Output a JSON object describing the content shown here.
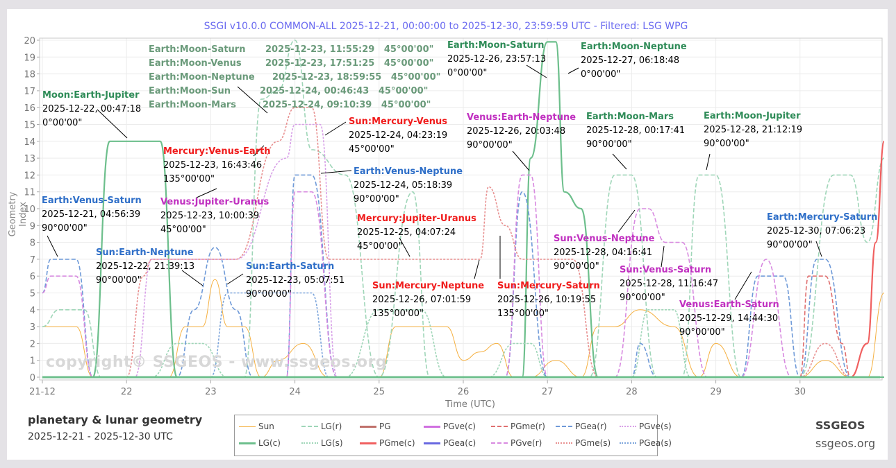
{
  "header": {
    "title": "SSGI v10.0.0 COMMON-ALL 2025-12-21, 00:00:00 to 2025-12-30, 23:59:59 UTC - Filtered: LSG WPG"
  },
  "footer": {
    "left_title": "planetary & lunar geometry",
    "left_subtitle": "2025-12-21 - 2025-12-30 UTC",
    "right_title": "SSGEOS",
    "right_subtitle": "ssgeos.org"
  },
  "watermark": "copyright© SSGEOS - www.ssgeos.org",
  "axes": {
    "xlabel": "Time (UTC)",
    "ylabel": "Geometry Index",
    "xticks": [
      "21-12",
      "22",
      "23",
      "24",
      "25",
      "26",
      "27",
      "28",
      "29",
      "30"
    ],
    "yticks": [
      "0",
      "1",
      "2",
      "3",
      "4",
      "5",
      "6",
      "7",
      "8",
      "9",
      "10",
      "11",
      "12",
      "13",
      "14",
      "15",
      "16",
      "17",
      "18",
      "19",
      "20"
    ]
  },
  "legend": [
    {
      "label": "Sun",
      "color": "#f5b041",
      "style": "solid-thin"
    },
    {
      "label": "LG(r)",
      "color": "#9fd6b8",
      "style": "dashed"
    },
    {
      "label": "PG",
      "color": "#c0716b",
      "style": "solid"
    },
    {
      "label": "PGve(c)",
      "color": "#d070e0",
      "style": "solid"
    },
    {
      "label": "PGme(r)",
      "color": "#e07070",
      "style": "dashed"
    },
    {
      "label": "PGea(r)",
      "color": "#6f9ad8",
      "style": "dashed"
    },
    {
      "label": "PGve(s)",
      "color": "#d8a0e8",
      "style": "dotted"
    },
    {
      "label": "LG(c)",
      "color": "#6dbf8c",
      "style": "solid"
    },
    {
      "label": "LG(s)",
      "color": "#9fd6b8",
      "style": "dotted"
    },
    {
      "label": "PGme(c)",
      "color": "#f06060",
      "style": "solid"
    },
    {
      "label": "PGea(c)",
      "color": "#6868e0",
      "style": "solid"
    },
    {
      "label": "PGve(r)",
      "color": "#d88ae0",
      "style": "dashed"
    },
    {
      "label": "PGme(s)",
      "color": "#e89090",
      "style": "dotted"
    },
    {
      "label": "PGea(s)",
      "color": "#7ea6dc",
      "style": "dotted"
    }
  ],
  "annotations": {
    "earth_moon_group": [
      {
        "name": "Earth:Moon-Saturn",
        "time": "2025-12-23, 11:55:29",
        "angle": "45°00'00\""
      },
      {
        "name": "Earth:Moon-Venus",
        "time": "2025-12-23, 17:51:25",
        "angle": "45°00'00\""
      },
      {
        "name": "Earth:Moon-Neptune",
        "time": "2025-12-23, 18:59:55",
        "angle": "45°00'00\""
      },
      {
        "name": "Earth:Moon-Sun",
        "time": "2025-12-24, 00:46:43",
        "angle": "45°00'00\""
      },
      {
        "name": "Earth:Moon-Mars",
        "time": "2025-12-24, 09:10:39",
        "angle": "45°00'00\""
      }
    ],
    "a1": {
      "name": "Moon:Earth-Jupiter",
      "time": "2025-12-22, 00:47:18",
      "angle": "0°00'00\""
    },
    "a2": {
      "name": "Earth:Venus-Saturn",
      "time": "2025-12-21, 04:56:39",
      "angle": "90°00'00\""
    },
    "a3": {
      "name": "Mercury:Venus-Earth",
      "time": "2025-12-23, 16:43:46",
      "angle": "135°00'00\""
    },
    "a4": {
      "name": "Venus:Jupiter-Uranus",
      "time": "2025-12-23, 10:00:39",
      "angle": "45°00'00\""
    },
    "a5": {
      "name": "Sun:Earth-Neptune",
      "time": "2025-12-22, 21:39:13",
      "angle": "90°00'00\""
    },
    "a6": {
      "name": "Sun:Earth-Saturn",
      "time": "2025-12-23, 05:07:51",
      "angle": "90°00'00\""
    },
    "a7": {
      "name": "Sun:Mercury-Venus",
      "time": "2025-12-24, 04:23:19",
      "angle": "45°00'00\""
    },
    "a8": {
      "name": "Earth:Venus-Neptune",
      "time": "2025-12-24, 05:18:39",
      "angle": "90°00'00\""
    },
    "a9": {
      "name": "Mercury:Jupiter-Uranus",
      "time": "2025-12-25, 04:07:24",
      "angle": "45°00'00\""
    },
    "a10": {
      "name": "Sun:Mercury-Neptune",
      "time": "2025-12-26, 07:01:59",
      "angle": "135°00'00\""
    },
    "a11": {
      "name": "Sun:Mercury-Saturn",
      "time": "2025-12-26, 10:19:55",
      "angle": "135°00'00\""
    },
    "a12": {
      "name": "Earth:Moon-Saturn",
      "time": "2025-12-26, 23:57:13",
      "angle": "0°00'00\""
    },
    "a13": {
      "name": "Earth:Moon-Neptune",
      "time": "2025-12-27, 06:18:48",
      "angle": "0°00'00\""
    },
    "a14": {
      "name": "Venus:Earth-Neptune",
      "time": "2025-12-26, 20:03:48",
      "angle": "90°00'00\""
    },
    "a15": {
      "name": "Earth:Moon-Mars",
      "time": "2025-12-28, 00:17:41",
      "angle": "90°00'00\""
    },
    "a16": {
      "name": "Earth:Moon-Jupiter",
      "time": "2025-12-28, 21:12:19",
      "angle": "90°00'00\""
    },
    "a17": {
      "name": "Sun:Venus-Neptune",
      "time": "2025-12-28, 04:16:41",
      "angle": "90°00'00\""
    },
    "a18": {
      "name": "Sun:Venus-Saturn",
      "time": "2025-12-28, 11:16:47",
      "angle": "90°00'00\""
    },
    "a19": {
      "name": "Venus:Earth-Saturn",
      "time": "2025-12-29, 14:44:30",
      "angle": "90°00'00\""
    },
    "a20": {
      "name": "Earth:Mercury-Saturn",
      "time": "2025-12-30, 07:06:23",
      "angle": "90°00'00\""
    }
  },
  "chart_data": {
    "type": "line",
    "title": "SSGI v10.0.0 COMMON-ALL 2025-12-21, 00:00:00 to 2025-12-30, 23:59:59 UTC - Filtered: LSG WPG",
    "xlabel": "Time (UTC)",
    "ylabel": "Geometry Index",
    "xlim": [
      21,
      31
    ],
    "ylim": [
      0,
      20
    ],
    "grid": true,
    "legend_position": "bottom",
    "x_unit": "day of Dec 2025",
    "series": [
      {
        "name": "Sun",
        "x": [
          21.0,
          21.4,
          21.6,
          22.0,
          22.5,
          22.7,
          22.9,
          23.05,
          23.2,
          23.4,
          23.6,
          23.8,
          24.1,
          24.4,
          24.6,
          25.0,
          25.2,
          25.5,
          25.8,
          26.0,
          26.2,
          26.4,
          26.6,
          26.8,
          27.1,
          27.4,
          27.6,
          27.8,
          28.1,
          28.5,
          28.8,
          29.0,
          29.3,
          29.5,
          30.0,
          30.3,
          30.6,
          30.8,
          31.0
        ],
        "values": [
          3,
          3,
          0,
          0,
          0,
          3,
          3,
          5.8,
          3,
          3,
          0,
          1,
          2,
          0,
          0,
          0,
          3,
          3,
          3,
          1,
          1.5,
          2,
          0,
          0,
          1,
          0,
          3,
          3,
          4,
          3,
          0,
          2,
          0,
          0,
          0,
          1,
          0,
          0,
          5
        ]
      },
      {
        "name": "LG(c)",
        "x": [
          21.0,
          21.6,
          21.8,
          22.0,
          22.2,
          22.4,
          22.6,
          23.0,
          26.5,
          26.7,
          26.8,
          27.0,
          27.1,
          27.2,
          27.4,
          27.6,
          31.0
        ],
        "values": [
          0,
          0,
          14,
          14,
          14,
          14,
          0,
          0,
          0,
          0,
          13,
          19.9,
          19.9,
          11,
          10,
          0,
          0
        ]
      },
      {
        "name": "LG(r)",
        "x": [
          21.0,
          21.2,
          21.5,
          21.7,
          23.4,
          23.6,
          23.8,
          24.0,
          24.2,
          24.6,
          25.0,
          25.4,
          25.6,
          26.0,
          27.5,
          27.8,
          28.0,
          28.3,
          28.6,
          28.8,
          29.0,
          29.3,
          29.6,
          30.0,
          30.4,
          30.6,
          30.8,
          31.0
        ],
        "values": [
          3,
          4,
          4,
          0,
          0,
          16.5,
          17,
          20,
          13.5,
          12,
          0,
          11,
          0,
          0,
          0,
          12,
          12,
          0,
          0,
          12,
          12,
          0,
          0,
          0,
          12,
          12,
          8,
          13
        ]
      },
      {
        "name": "LG(s)",
        "x": [
          22.3,
          22.6,
          22.9,
          23.2,
          24.6,
          25.0,
          25.5,
          25.8,
          26.3,
          26.6,
          26.8,
          27.0,
          28.0,
          28.2,
          28.5,
          28.7
        ],
        "values": [
          0,
          2,
          2,
          0,
          0,
          4,
          4,
          0,
          0,
          2,
          2,
          0,
          0,
          4,
          4,
          0
        ]
      },
      {
        "name": "PGea(r)",
        "x": [
          21.0,
          21.1,
          21.4,
          21.6,
          22.6,
          22.8,
          23.05,
          23.3,
          23.5,
          23.9,
          24.0,
          24.2,
          24.5,
          24.8,
          26.5,
          26.7,
          27.0,
          28.0,
          28.1,
          28.3,
          29.3,
          29.5,
          29.8,
          30.0,
          30.2,
          30.3,
          30.6
        ],
        "values": [
          5,
          7,
          7,
          0,
          0,
          4,
          7.7,
          4,
          0,
          0,
          12,
          12,
          0,
          0,
          0,
          11,
          0,
          0,
          2,
          0,
          0,
          6,
          6,
          0,
          7,
          7,
          0
        ]
      },
      {
        "name": "PGea(s)",
        "x": [
          23.0,
          23.2,
          23.6,
          24.0,
          24.2,
          24.4
        ],
        "values": [
          0,
          5,
          5,
          5,
          5,
          0
        ]
      },
      {
        "name": "PGve(r)",
        "x": [
          21.0,
          21.1,
          21.4,
          21.6,
          23.9,
          24.0,
          24.2,
          24.5,
          26.5,
          26.7,
          26.8,
          27.0,
          27.8,
          28.1,
          28.2,
          28.4,
          28.6,
          28.9,
          29.3,
          29.6,
          29.9
        ],
        "values": [
          5,
          6,
          6,
          0,
          0,
          11,
          11,
          0,
          0,
          12,
          12,
          0,
          0,
          10,
          10,
          8,
          8,
          0,
          0,
          7,
          0
        ]
      },
      {
        "name": "PGve(s)",
        "x": [
          21.5,
          22.1,
          22.3,
          23.3,
          23.9,
          24.0,
          24.1,
          24.3,
          24.5
        ],
        "values": [
          0,
          0,
          7,
          7,
          13,
          15,
          15,
          15,
          0
        ]
      },
      {
        "name": "PGme(r)",
        "x": [
          30.0,
          30.1,
          30.3,
          30.5,
          30.6
        ],
        "values": [
          0,
          6,
          6,
          2,
          0
        ]
      },
      {
        "name": "PGme(s)",
        "x": [
          22.0,
          22.2,
          22.3,
          23.3,
          23.8,
          24.0,
          24.2,
          24.4,
          24.6,
          26.2,
          26.3,
          26.5,
          26.7,
          27.0,
          27.3,
          27.6,
          30.0,
          30.3,
          30.6
        ],
        "values": [
          0,
          6,
          7,
          7,
          14,
          16,
          16,
          7,
          7,
          7,
          11.3,
          9,
          7,
          7,
          7,
          0,
          0,
          2,
          0
        ]
      },
      {
        "name": "PGme(c)",
        "x": [
          30.6,
          30.8,
          30.9,
          31.0
        ],
        "values": [
          0,
          2,
          8,
          14
        ]
      }
    ]
  }
}
